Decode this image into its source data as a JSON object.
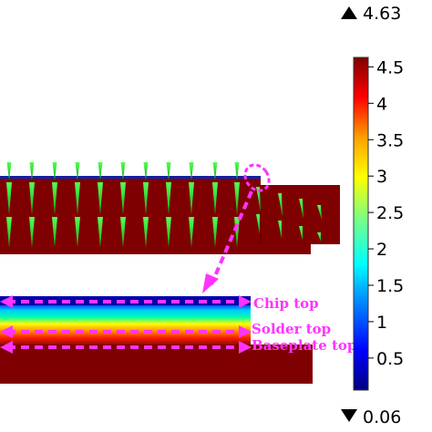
{
  "colorbar": {
    "max_value": "4.63",
    "min_value": "0.06",
    "ticks": [
      "4.5",
      "4",
      "3.5",
      "3",
      "2.5",
      "2",
      "1.5",
      "1",
      "0.5"
    ],
    "range": [
      0.06,
      4.63
    ],
    "colors": [
      "#00007f",
      "#0000ff",
      "#00aaff",
      "#00ffff",
      "#7fff7f",
      "#ffff00",
      "#ff9f00",
      "#ff0000",
      "#7f0000"
    ]
  },
  "annotations": {
    "chip_top": "Chip top",
    "solder_top": "Solder top",
    "baseplate_top": "Baseplate top",
    "color": "#ff33ff"
  },
  "materials": {
    "hot_color": "#7f0000",
    "arrow_color": "#22cc22"
  }
}
